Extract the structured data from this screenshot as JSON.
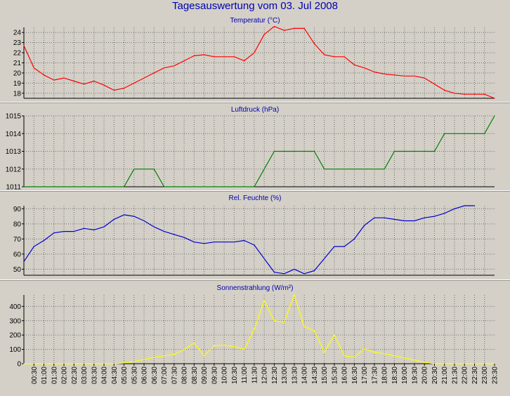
{
  "title": "Tagesauswertung vom 03. Jul 2008",
  "colors": {
    "background": "#d4d0c8",
    "title": "#0000b0",
    "temperature": "#ff0000",
    "pressure": "#008000",
    "humidity": "#0000cc",
    "solar": "#ffff00"
  },
  "x_labels": [
    "00:30",
    "01:00",
    "01:30",
    "02:00",
    "02:30",
    "03:00",
    "03:30",
    "04:00",
    "04:30",
    "05:00",
    "05:30",
    "06:00",
    "06:30",
    "07:00",
    "07:30",
    "08:00",
    "08:30",
    "09:00",
    "09:30",
    "10:00",
    "10:30",
    "11:00",
    "11:30",
    "12:00",
    "12:30",
    "13:00",
    "13:30",
    "14:00",
    "14:30",
    "15:00",
    "15:30",
    "16:00",
    "16:30",
    "17:00",
    "17:30",
    "18:00",
    "18:30",
    "19:00",
    "19:30",
    "20:00",
    "20:30",
    "21:00",
    "21:30",
    "22:00",
    "22:30",
    "23:00",
    "23:30"
  ],
  "chart_data": [
    {
      "type": "line",
      "title": "Temperatur (°C)",
      "x_range": [
        0,
        23.5
      ],
      "ylim": [
        17.5,
        24.5
      ],
      "yticks": [
        18,
        19,
        20,
        21,
        22,
        23,
        24
      ],
      "grid": true,
      "series": [
        {
          "color": "#ff0000",
          "x": [
            0,
            0.5,
            1,
            1.5,
            2,
            2.5,
            3,
            3.5,
            4,
            4.5,
            5,
            5.5,
            6,
            6.5,
            7,
            7.5,
            8,
            8.5,
            9,
            9.5,
            10,
            10.5,
            11,
            11.5,
            12,
            12.5,
            13,
            13.5,
            14,
            14.5,
            15,
            15.5,
            16,
            16.5,
            17,
            17.5,
            18,
            18.5,
            19,
            19.5,
            20,
            20.5,
            21,
            21.5,
            22,
            22.5,
            23,
            23.5
          ],
          "y": [
            22.7,
            20.5,
            19.8,
            19.3,
            19.5,
            19.2,
            18.9,
            19.2,
            18.8,
            18.3,
            18.5,
            19.0,
            19.5,
            20.0,
            20.5,
            20.7,
            21.2,
            21.7,
            21.8,
            21.6,
            21.6,
            21.6,
            21.2,
            22.0,
            23.8,
            24.6,
            24.2,
            24.4,
            24.4,
            22.9,
            21.8,
            21.6,
            21.6,
            20.8,
            20.5,
            20.1,
            19.9,
            19.8,
            19.7,
            19.7,
            19.5,
            18.9,
            18.3,
            18.0,
            17.9,
            17.9,
            17.9,
            17.5
          ]
        }
      ]
    },
    {
      "type": "line",
      "title": "Luftdruck (hPa)",
      "x_range": [
        0,
        23.5
      ],
      "ylim": [
        1011,
        1015
      ],
      "yticks": [
        1011,
        1012,
        1013,
        1014,
        1015
      ],
      "grid": true,
      "series": [
        {
          "color": "#008000",
          "x": [
            0,
            5,
            5.5,
            6,
            6.5,
            7,
            11.5,
            12,
            12.5,
            13,
            14.5,
            15,
            18,
            18.5,
            20.5,
            21,
            23,
            23.5
          ],
          "y": [
            1011,
            1011,
            1012,
            1012,
            1012,
            1011,
            1011,
            1012,
            1013,
            1013,
            1013,
            1012,
            1012,
            1013,
            1013,
            1014,
            1014,
            1015
          ]
        }
      ]
    },
    {
      "type": "line",
      "title": "Rel. Feuchte (%)",
      "x_range": [
        0,
        23.5
      ],
      "ylim": [
        46,
        92
      ],
      "yticks": [
        50,
        60,
        70,
        80,
        90
      ],
      "grid": true,
      "series": [
        {
          "color": "#0000cc",
          "x": [
            0,
            0.5,
            1,
            1.5,
            2,
            2.5,
            3,
            3.5,
            4,
            4.5,
            5,
            5.5,
            6,
            6.5,
            7,
            7.5,
            8,
            8.5,
            9,
            9.5,
            10,
            10.5,
            11,
            11.5,
            12,
            12.5,
            13,
            13.5,
            14,
            14.5,
            15,
            15.5,
            16,
            16.5,
            17,
            17.5,
            18,
            18.5,
            19,
            19.5,
            20,
            20.5,
            21,
            21.5,
            22,
            22.5
          ],
          "y": [
            55,
            65,
            69,
            74,
            75,
            75,
            77,
            76,
            78,
            83,
            86,
            85,
            82,
            78,
            75,
            73,
            71,
            68,
            67,
            68,
            68,
            68,
            69,
            66,
            57,
            48,
            47,
            50,
            47,
            49,
            57,
            65,
            65,
            70,
            79,
            84,
            84,
            83,
            82,
            82,
            84,
            85,
            87,
            90,
            92,
            92
          ]
        }
      ]
    },
    {
      "type": "line",
      "title": "Sonnenstrahlung (W/m²)",
      "x_range": [
        0,
        23.5
      ],
      "ylim": [
        0,
        480
      ],
      "yticks": [
        0,
        100,
        200,
        300,
        400
      ],
      "grid": true,
      "series": [
        {
          "color": "#ffff00",
          "x": [
            0,
            4.5,
            5,
            5.5,
            6,
            6.5,
            7,
            7.5,
            8,
            8.5,
            9,
            9.5,
            10,
            10.5,
            11,
            11.5,
            12,
            12.5,
            13,
            13.5,
            14,
            14.5,
            15,
            15.5,
            16,
            16.5,
            17,
            17.5,
            18,
            18.5,
            19,
            19.5,
            20,
            20.5,
            23.5
          ],
          "y": [
            0,
            0,
            5,
            15,
            30,
            45,
            55,
            65,
            100,
            145,
            55,
            125,
            130,
            120,
            100,
            240,
            440,
            300,
            290,
            480,
            260,
            230,
            80,
            200,
            55,
            45,
            105,
            80,
            70,
            55,
            40,
            25,
            10,
            0,
            0
          ]
        }
      ]
    }
  ]
}
